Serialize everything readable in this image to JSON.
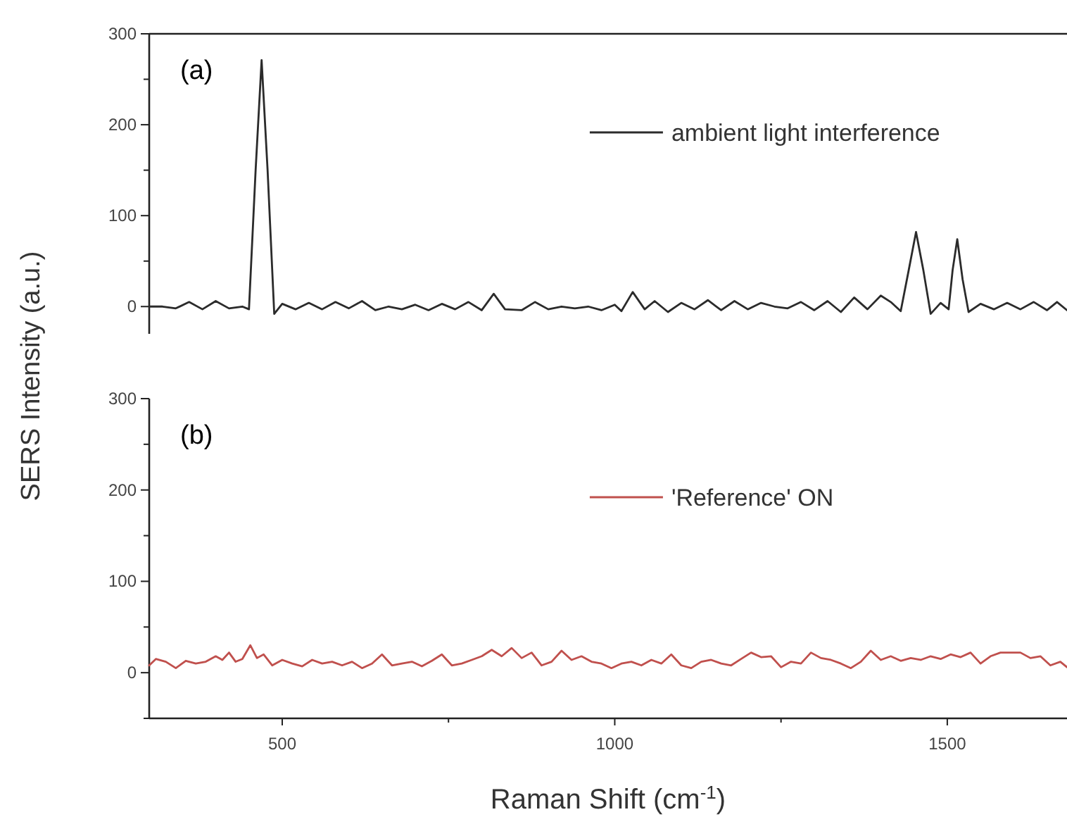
{
  "chart_data": [
    {
      "type": "line",
      "ylabel": "SERS Intensity (a.u.)",
      "annotations": [
        "(a)"
      ],
      "legend": "top right",
      "tick_labels": "y",
      "xlim": [
        300,
        1680
      ],
      "ylim": [
        -30,
        300
      ],
      "yticks": [
        0,
        {
          "value": 50,
          "label": null
        },
        100,
        {
          "value": 150,
          "label": null
        },
        200,
        {
          "value": 250,
          "label": null
        },
        300
      ],
      "series": [
        {
          "name": "ambient light interference",
          "color": "#2b2b2b",
          "x": [
            300,
            320,
            340,
            360,
            380,
            400,
            420,
            440,
            450,
            460,
            469,
            478,
            488,
            500,
            520,
            540,
            560,
            580,
            600,
            620,
            640,
            660,
            680,
            700,
            720,
            740,
            760,
            780,
            800,
            818,
            835,
            860,
            880,
            900,
            920,
            940,
            960,
            980,
            1000,
            1010,
            1027,
            1045,
            1060,
            1080,
            1100,
            1120,
            1140,
            1160,
            1180,
            1200,
            1220,
            1240,
            1260,
            1280,
            1300,
            1320,
            1340,
            1360,
            1380,
            1400,
            1415,
            1430,
            1442,
            1453,
            1464,
            1475,
            1490,
            1502,
            1508,
            1515,
            1523,
            1532,
            1550,
            1570,
            1590,
            1610,
            1630,
            1650,
            1665,
            1680
          ],
          "values": [
            0,
            0,
            -2,
            5,
            -3,
            6,
            -2,
            0,
            -3,
            150,
            271,
            150,
            -8,
            3,
            -3,
            4,
            -3,
            5,
            -2,
            6,
            -4,
            0,
            -3,
            2,
            -4,
            3,
            -3,
            5,
            -4,
            14,
            -3,
            -4,
            5,
            -3,
            0,
            -2,
            0,
            -4,
            2,
            -5,
            16,
            -3,
            6,
            -6,
            4,
            -3,
            7,
            -4,
            6,
            -3,
            4,
            0,
            -2,
            5,
            -4,
            6,
            -6,
            10,
            -3,
            12,
            5,
            -5,
            40,
            82,
            40,
            -8,
            4,
            -3,
            40,
            74,
            30,
            -6,
            3,
            -3,
            4,
            -3,
            5,
            -4,
            5,
            -4
          ]
        }
      ]
    },
    {
      "type": "line",
      "xlabel": "Raman Shift (cm$^{-1}$)",
      "annotations": [
        "(b)"
      ],
      "legend": "top right",
      "xlim": [
        300,
        1680
      ],
      "ylim": [
        -50,
        300
      ],
      "xticks": [
        500,
        {
          "value": 750,
          "label": null
        },
        1000,
        {
          "value": 1250,
          "label": null
        },
        1500
      ],
      "yticks": [
        {
          "value": -50,
          "label": null
        },
        0,
        {
          "value": 50,
          "label": null
        },
        100,
        {
          "value": 150,
          "label": null
        },
        200,
        {
          "value": 250,
          "label": null
        },
        300
      ],
      "series": [
        {
          "name": "'Reference' ON",
          "color": "#c0504d",
          "x": [
            300,
            310,
            325,
            340,
            355,
            370,
            385,
            400,
            410,
            420,
            430,
            440,
            452,
            462,
            472,
            485,
            500,
            515,
            530,
            545,
            560,
            575,
            590,
            605,
            620,
            635,
            650,
            665,
            680,
            695,
            710,
            725,
            740,
            755,
            770,
            785,
            800,
            815,
            830,
            845,
            860,
            875,
            890,
            905,
            920,
            935,
            950,
            965,
            980,
            995,
            1010,
            1025,
            1040,
            1055,
            1070,
            1085,
            1100,
            1115,
            1130,
            1145,
            1160,
            1175,
            1190,
            1205,
            1220,
            1235,
            1250,
            1265,
            1280,
            1295,
            1310,
            1325,
            1340,
            1355,
            1370,
            1385,
            1400,
            1415,
            1430,
            1445,
            1460,
            1475,
            1490,
            1505,
            1520,
            1535,
            1550,
            1565,
            1580,
            1595,
            1610,
            1625,
            1640,
            1655,
            1670,
            1680
          ],
          "values": [
            8,
            15,
            12,
            5,
            13,
            10,
            12,
            18,
            14,
            22,
            12,
            15,
            30,
            16,
            20,
            8,
            14,
            10,
            7,
            14,
            10,
            12,
            8,
            12,
            5,
            10,
            20,
            8,
            10,
            12,
            7,
            13,
            20,
            8,
            10,
            14,
            18,
            25,
            18,
            27,
            16,
            22,
            8,
            12,
            24,
            14,
            18,
            12,
            10,
            5,
            10,
            12,
            8,
            14,
            10,
            20,
            8,
            5,
            12,
            14,
            10,
            8,
            15,
            22,
            17,
            18,
            6,
            12,
            10,
            22,
            16,
            14,
            10,
            5,
            12,
            24,
            14,
            18,
            13,
            16,
            14,
            18,
            15,
            20,
            17,
            22,
            10,
            18,
            22,
            22,
            22,
            16,
            18,
            8,
            12,
            6
          ]
        }
      ]
    }
  ]
}
